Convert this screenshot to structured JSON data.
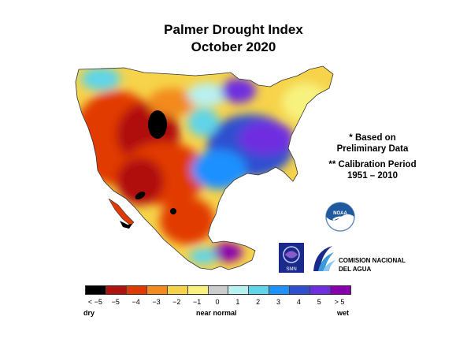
{
  "title": "Palmer Drought Index",
  "subtitle": "October 2020",
  "notes": [
    "* Based on",
    "Preliminary Data",
    "** Calibration Period",
    "1951 – 2010"
  ],
  "legend": {
    "colors": [
      "#000000",
      "#b01010",
      "#e13a00",
      "#f28a1e",
      "#f6d34a",
      "#f7f27e",
      "#cccccc",
      "#b8f0f0",
      "#60d4e8",
      "#1e90ff",
      "#2f4fd0",
      "#6e2ee0",
      "#8a00b0"
    ],
    "ticks": [
      "< −5",
      "−5",
      "−4",
      "−3",
      "−2",
      "−1",
      "0",
      "1",
      "2",
      "3",
      "4",
      "5",
      "> 5"
    ],
    "labels": {
      "dry": "dry",
      "normal": "near normal",
      "wet": "wet"
    }
  },
  "logos": {
    "noaa": "NOAA",
    "smn": "SMN",
    "conagua_line1": "COMISION NACIONAL",
    "conagua_line2": "DEL AGUA"
  }
}
